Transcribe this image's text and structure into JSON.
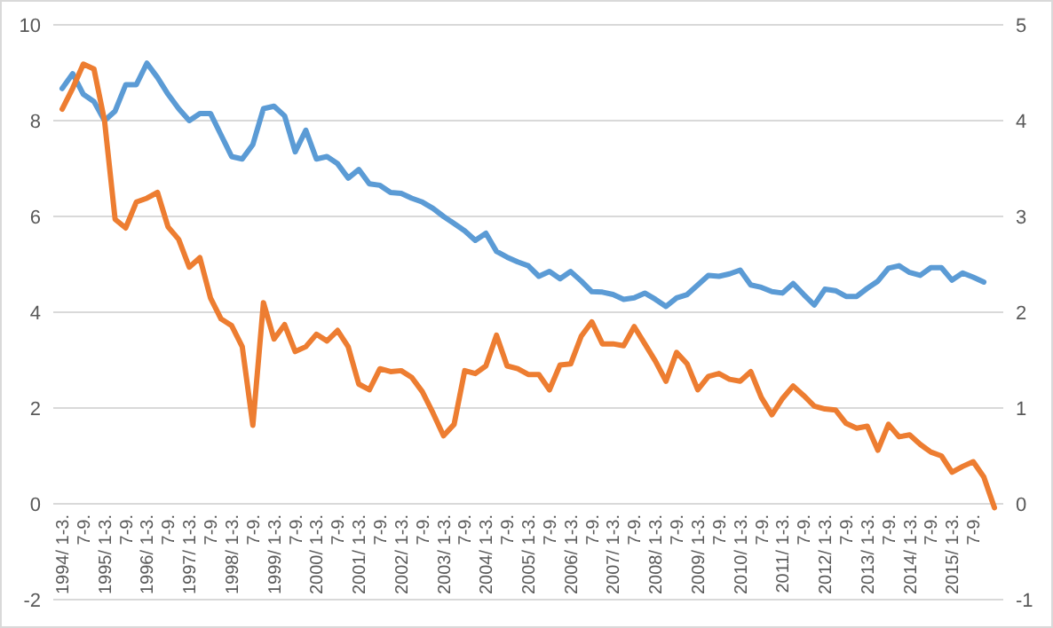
{
  "chart_data": {
    "type": "line",
    "categories": [
      "1994/ 1-3.",
      null,
      "7-9.",
      null,
      "1995/ 1-3.",
      null,
      "7-9.",
      null,
      "1996/ 1-3.",
      null,
      "7-9.",
      null,
      "1997/ 1-3.",
      null,
      "7-9.",
      null,
      "1998/ 1-3.",
      null,
      "7-9.",
      null,
      "1999/ 1-3.",
      null,
      "7-9.",
      null,
      "2000/ 1-3.",
      null,
      "7-9.",
      null,
      "2001/ 1-3.",
      null,
      "7-9.",
      null,
      "2002/ 1-3.",
      null,
      "7-9.",
      null,
      "2003/ 1-3.",
      null,
      "7-9.",
      null,
      "2004/ 1-3.",
      null,
      "7-9.",
      null,
      "2005/ 1-3.",
      null,
      "7-9.",
      null,
      "2006/ 1-3.",
      null,
      "7-9.",
      null,
      "2007/ 1-3.",
      null,
      "7-9.",
      null,
      "2008/ 1-3.",
      null,
      "7-9.",
      null,
      "2009/ 1-3.",
      null,
      "7-9.",
      null,
      "2010/ 1-3.",
      null,
      "7-9.",
      null,
      "2011/ 1-3.",
      null,
      "7-9.",
      null,
      "2012/ 1-3.",
      null,
      "7-9.",
      null,
      "2013/ 1-3.",
      null,
      "7-9.",
      null,
      "2014/ 1-3.",
      null,
      "7-9.",
      null,
      "2015/ 1-3.",
      null,
      "7-9.",
      null,
      null
    ],
    "series": [
      {
        "color": "#5b9bd5",
        "values": [
          8.67,
          8.98,
          8.55,
          8.4,
          8.0,
          8.2,
          8.75,
          8.75,
          9.2,
          8.9,
          8.55,
          8.25,
          8.0,
          8.15,
          8.15,
          7.7,
          7.25,
          7.2,
          7.5,
          8.25,
          8.3,
          8.1,
          7.35,
          7.8,
          7.2,
          7.25,
          7.1,
          6.8,
          6.98,
          6.68,
          6.65,
          6.5,
          6.48,
          6.38,
          6.3,
          6.17,
          6.0,
          5.85,
          5.7,
          5.5,
          5.65,
          5.27,
          5.15,
          5.05,
          4.97,
          4.75,
          4.85,
          4.7,
          4.85,
          4.65,
          4.43,
          4.42,
          4.37,
          4.27,
          4.3,
          4.4,
          4.27,
          4.12,
          4.3,
          4.37,
          4.57,
          4.77,
          4.75,
          4.8,
          4.88,
          4.57,
          4.52,
          4.43,
          4.4,
          4.6,
          4.37,
          4.15,
          4.48,
          4.45,
          4.33,
          4.33,
          4.5,
          4.65,
          4.92,
          4.97,
          4.83,
          4.77,
          4.93,
          4.93,
          4.67,
          4.82,
          4.73,
          4.63,
          null
        ]
      },
      {
        "color": "#ed7d31",
        "axis": "y2",
        "values": [
          4.12,
          4.34,
          4.59,
          4.54,
          4.0,
          2.97,
          2.88,
          3.15,
          3.19,
          3.25,
          2.89,
          2.76,
          2.47,
          2.57,
          2.15,
          1.93,
          1.86,
          1.64,
          0.82,
          2.1,
          1.72,
          1.87,
          1.59,
          1.64,
          1.77,
          1.7,
          1.81,
          1.64,
          1.25,
          1.19,
          1.41,
          1.38,
          1.39,
          1.32,
          1.17,
          0.95,
          0.71,
          0.83,
          1.39,
          1.36,
          1.44,
          1.76,
          1.44,
          1.41,
          1.35,
          1.35,
          1.19,
          1.45,
          1.46,
          1.75,
          1.9,
          1.67,
          1.67,
          1.65,
          1.85,
          1.67,
          1.49,
          1.28,
          1.58,
          1.46,
          1.19,
          1.33,
          1.36,
          1.3,
          1.28,
          1.38,
          1.11,
          0.93,
          1.1,
          1.23,
          1.13,
          1.02,
          0.99,
          0.98,
          0.84,
          0.79,
          0.81,
          0.56,
          0.83,
          0.7,
          0.72,
          0.62,
          0.54,
          0.5,
          0.33,
          0.39,
          0.44,
          0.28,
          -0.04
        ]
      }
    ],
    "ylim": [
      -2,
      10
    ],
    "yticks": [
      -2,
      0,
      2,
      4,
      6,
      8,
      10
    ],
    "y2lim": [
      -1,
      5
    ],
    "y2ticks": [
      -1,
      0,
      1,
      2,
      3,
      4,
      5
    ],
    "grid": "y",
    "marker": "none",
    "line_style": "solid"
  }
}
